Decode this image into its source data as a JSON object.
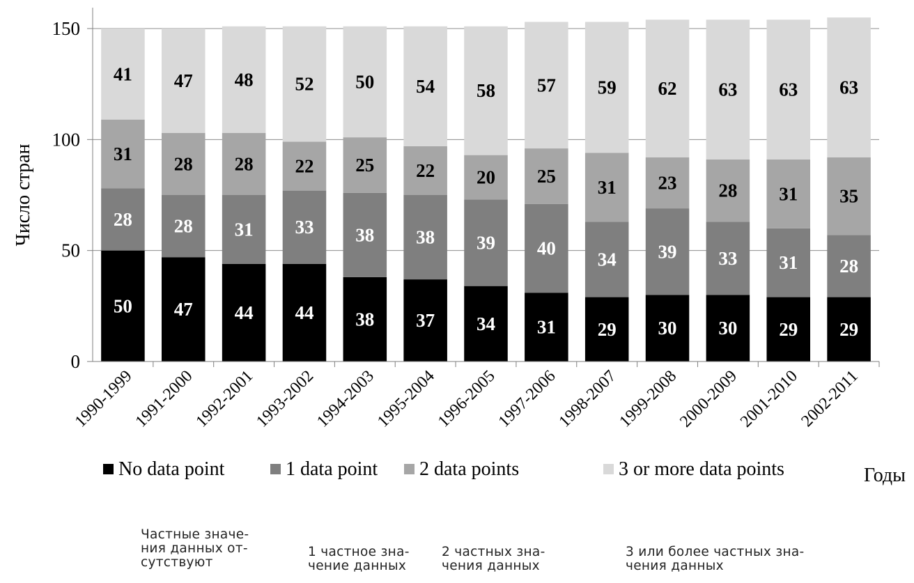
{
  "chart_data": {
    "type": "bar",
    "stacked": true,
    "ylabel": "Число стран",
    "xlabel": "Годы",
    "ylim": [
      0,
      150
    ],
    "yticks": [
      0,
      50,
      100,
      150
    ],
    "grid": true,
    "legend_position": "bottom",
    "categories": [
      "1990-1999",
      "1991-2000",
      "1992-2001",
      "1993-2002",
      "1994-2003",
      "1995-2004",
      "1996-2005",
      "1997-2006",
      "1998-2007",
      "1999-2008",
      "2000-2009",
      "2001-2010",
      "2002-2011"
    ],
    "series": [
      {
        "name": "No data point",
        "color": "#000000",
        "label_color": "#ffffff",
        "values": [
          50,
          47,
          44,
          44,
          38,
          37,
          34,
          31,
          29,
          30,
          30,
          29,
          29
        ]
      },
      {
        "name": "1 data point",
        "color": "#7f7f7f",
        "label_color": "#ffffff",
        "values": [
          28,
          28,
          31,
          33,
          38,
          38,
          39,
          40,
          34,
          39,
          33,
          31,
          28
        ]
      },
      {
        "name": "2 data points",
        "color": "#a6a6a6",
        "label_color": "#000000",
        "values": [
          31,
          28,
          28,
          22,
          25,
          22,
          20,
          25,
          31,
          23,
          28,
          31,
          35
        ]
      },
      {
        "name": "3 or more data points",
        "color": "#d9d9d9",
        "label_color": "#000000",
        "values": [
          41,
          47,
          48,
          52,
          50,
          54,
          58,
          57,
          59,
          62,
          63,
          63,
          63
        ]
      }
    ]
  },
  "legend_translations": [
    "Частные значе-\nния данных от-\nсутствуют",
    "1 частное зна-\nчение данных",
    "2 частных зна-\nчения данных",
    "3 или более частных зна-\nчения данных"
  ]
}
